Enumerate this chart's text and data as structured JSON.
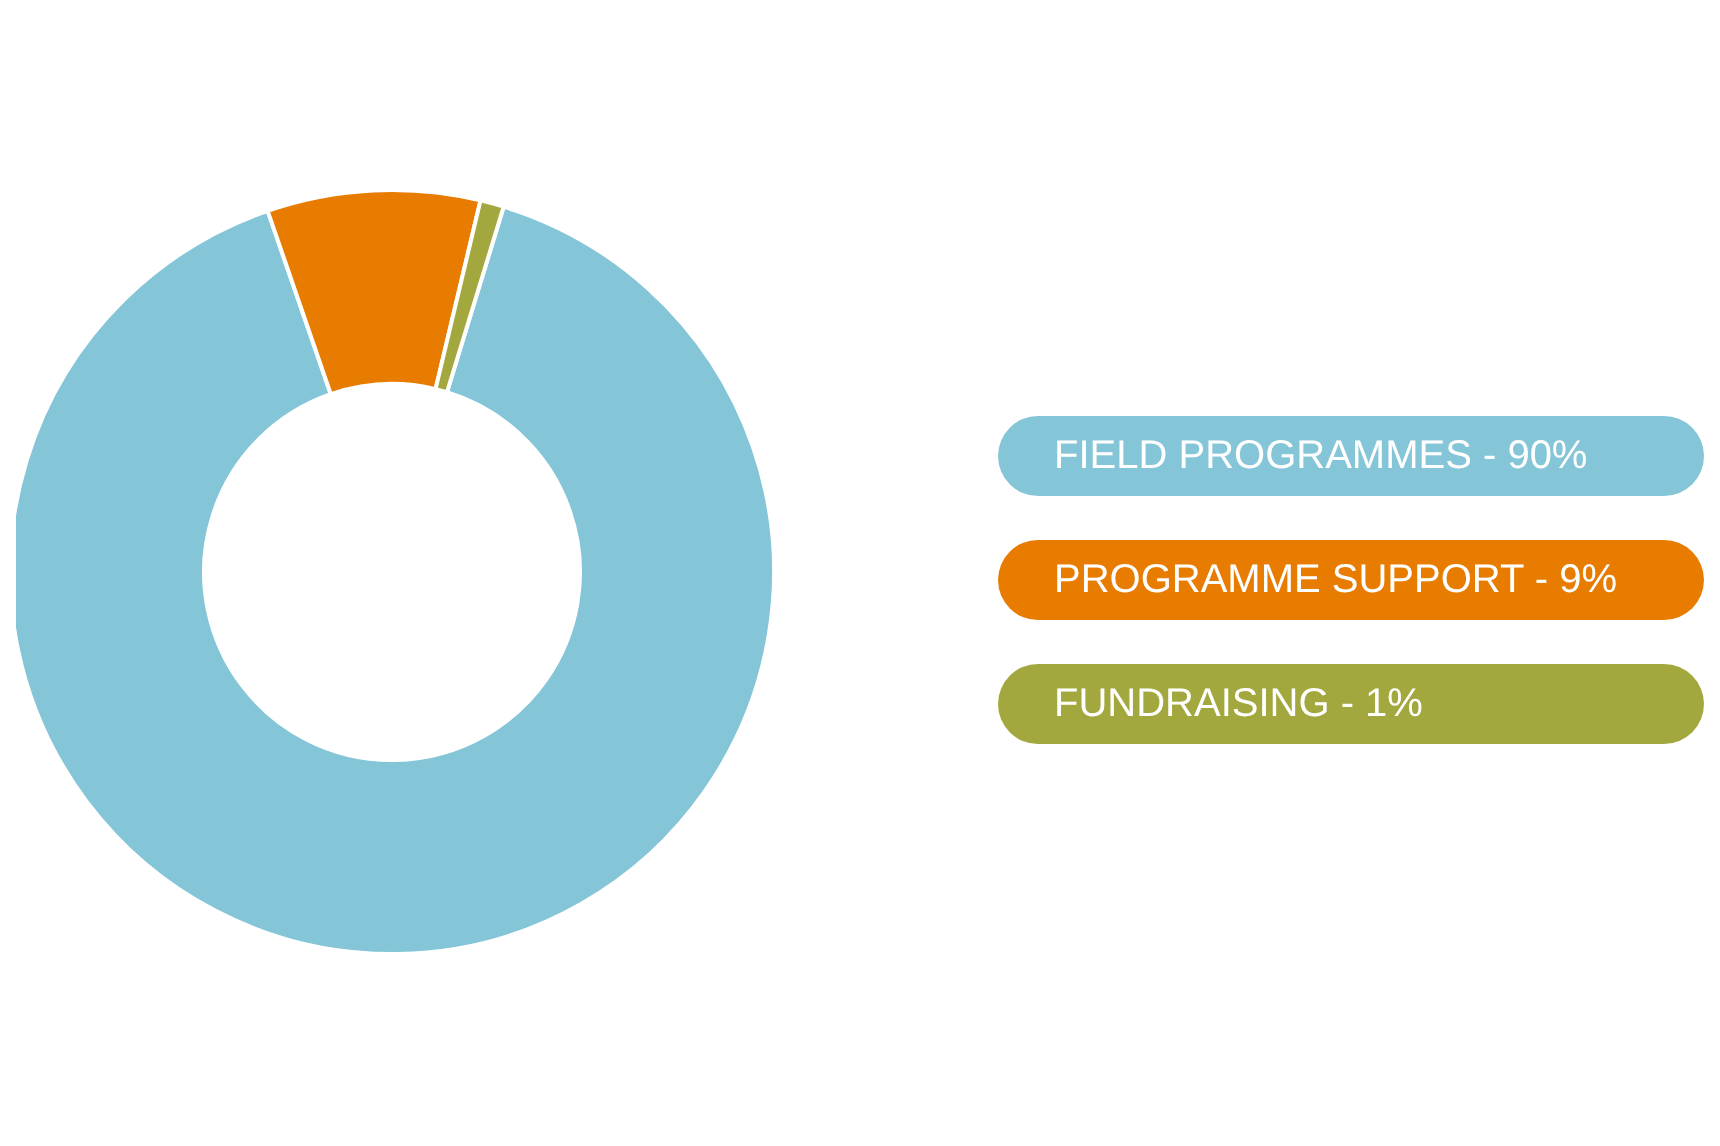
{
  "chart_data": {
    "type": "donut",
    "categories": [
      "FIELD PROGRAMMES - 90%",
      "PROGRAMME SUPPORT - 9%",
      "FUNDRAISING - 1%"
    ],
    "values": [
      90,
      9,
      1
    ],
    "colors": [
      "#85c5d8",
      "#e87c00",
      "#a2a83e"
    ],
    "legend": "right"
  }
}
